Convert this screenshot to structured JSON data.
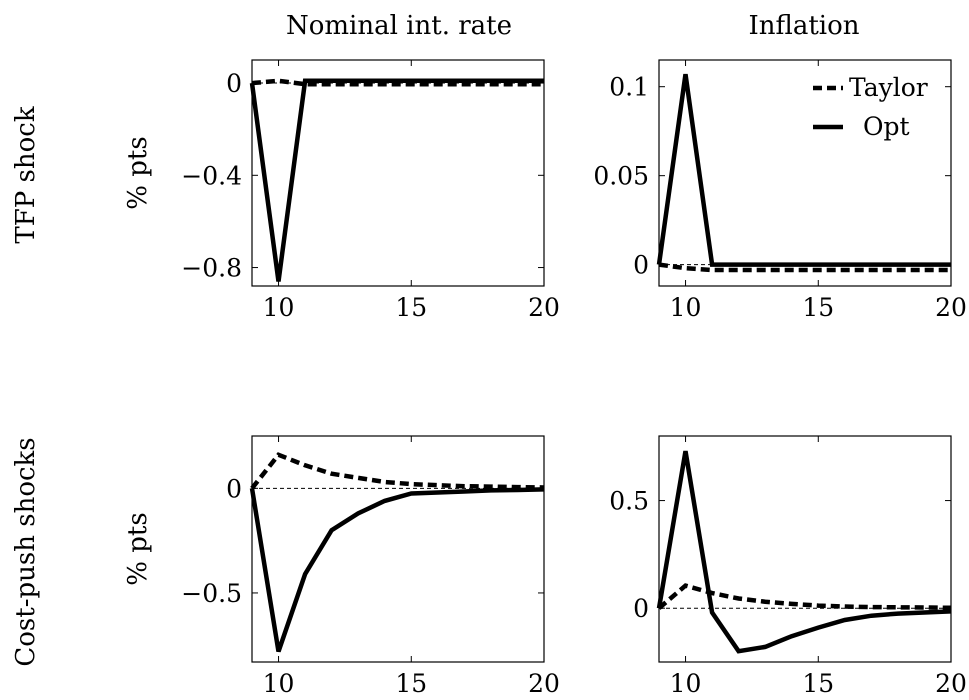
{
  "columns": [
    "Nominal int. rate",
    "Inflation"
  ],
  "rows": [
    "TFP shock",
    "Cost-push shocks"
  ],
  "legend": [
    {
      "label": "Taylor",
      "style": "dashed"
    },
    {
      "label": "Opt",
      "style": "solid"
    }
  ],
  "chart_data": [
    {
      "type": "line",
      "title": "Nominal int. rate",
      "row": "TFP shock",
      "ylabel": "% pts",
      "xlim": [
        9,
        20
      ],
      "ylim": [
        -0.88,
        0.1
      ],
      "xticks": [
        10,
        15,
        20
      ],
      "xtick_labels": [
        "10",
        "15",
        "20"
      ],
      "yticks": [
        0,
        -0.4,
        -0.8
      ],
      "ytick_labels": [
        "0",
        "−0.4",
        "−0.8"
      ],
      "zero_line": true,
      "legend": false,
      "series": [
        {
          "name": "Taylor",
          "style": "dashed",
          "x": [
            9,
            10,
            11,
            12,
            13,
            14,
            15,
            16,
            17,
            18,
            19,
            20
          ],
          "y": [
            0,
            0.01,
            -0.005,
            -0.005,
            -0.005,
            -0.005,
            -0.005,
            -0.005,
            -0.005,
            -0.005,
            -0.005,
            -0.005
          ]
        },
        {
          "name": "Opt",
          "style": "solid",
          "x": [
            9,
            10,
            11,
            12,
            13,
            14,
            15,
            16,
            17,
            18,
            19,
            20
          ],
          "y": [
            0,
            -0.86,
            0.01,
            0.01,
            0.01,
            0.01,
            0.01,
            0.01,
            0.01,
            0.01,
            0.01,
            0.01
          ]
        }
      ]
    },
    {
      "type": "line",
      "title": "Inflation",
      "row": "TFP shock",
      "ylabel": "",
      "xlim": [
        9,
        20
      ],
      "ylim": [
        -0.012,
        0.115
      ],
      "xticks": [
        10,
        15,
        20
      ],
      "xtick_labels": [
        "10",
        "15",
        "20"
      ],
      "yticks": [
        0,
        0.05,
        0.1
      ],
      "ytick_labels": [
        "0",
        "0.05",
        "0.1"
      ],
      "zero_line": true,
      "legend": true,
      "legend_position": "top-right",
      "series": [
        {
          "name": "Taylor",
          "style": "dashed",
          "x": [
            9,
            10,
            11,
            12,
            13,
            14,
            15,
            16,
            17,
            18,
            19,
            20
          ],
          "y": [
            0,
            -0.002,
            -0.003,
            -0.003,
            -0.003,
            -0.003,
            -0.003,
            -0.003,
            -0.003,
            -0.003,
            -0.003,
            -0.003
          ]
        },
        {
          "name": "Opt",
          "style": "solid",
          "x": [
            9,
            10,
            11,
            12,
            13,
            14,
            15,
            16,
            17,
            18,
            19,
            20
          ],
          "y": [
            0,
            0.107,
            0,
            0,
            0,
            0,
            0,
            0,
            0,
            0,
            0,
            0
          ]
        }
      ]
    },
    {
      "type": "line",
      "title": "Nominal int. rate",
      "row": "Cost-push shocks",
      "ylabel": "% pts",
      "xlim": [
        9,
        20
      ],
      "ylim": [
        -0.83,
        0.25
      ],
      "xticks": [
        10,
        15,
        20
      ],
      "xtick_labels": [
        "10",
        "15",
        "20"
      ],
      "yticks": [
        0,
        -0.5
      ],
      "ytick_labels": [
        "0",
        "−0.5"
      ],
      "zero_line": true,
      "legend": false,
      "series": [
        {
          "name": "Taylor",
          "style": "dashed",
          "x": [
            9,
            10,
            11,
            12,
            13,
            14,
            15,
            16,
            17,
            18,
            19,
            20
          ],
          "y": [
            0,
            0.16,
            0.11,
            0.07,
            0.05,
            0.03,
            0.02,
            0.015,
            0.01,
            0.008,
            0.006,
            0.004
          ]
        },
        {
          "name": "Opt",
          "style": "solid",
          "x": [
            9,
            10,
            11,
            12,
            13,
            14,
            15,
            16,
            17,
            18,
            19,
            20
          ],
          "y": [
            0,
            -0.78,
            -0.41,
            -0.2,
            -0.12,
            -0.06,
            -0.025,
            -0.02,
            -0.015,
            -0.01,
            -0.008,
            -0.005
          ]
        }
      ]
    },
    {
      "type": "line",
      "title": "Inflation",
      "row": "Cost-push shocks",
      "ylabel": "",
      "xlim": [
        9,
        20
      ],
      "ylim": [
        -0.25,
        0.8
      ],
      "xticks": [
        10,
        15,
        20
      ],
      "xtick_labels": [
        "10",
        "15",
        "20"
      ],
      "yticks": [
        0,
        0.5
      ],
      "ytick_labels": [
        "0",
        "0.5"
      ],
      "zero_line": true,
      "legend": false,
      "series": [
        {
          "name": "Taylor",
          "style": "dashed",
          "x": [
            9,
            10,
            11,
            12,
            13,
            14,
            15,
            16,
            17,
            18,
            19,
            20
          ],
          "y": [
            0,
            0.105,
            0.07,
            0.045,
            0.03,
            0.02,
            0.012,
            0.008,
            0.005,
            0.004,
            0.003,
            0.002
          ]
        },
        {
          "name": "Opt",
          "style": "solid",
          "x": [
            9,
            10,
            11,
            12,
            13,
            14,
            15,
            16,
            17,
            18,
            19,
            20
          ],
          "y": [
            0,
            0.73,
            -0.02,
            -0.2,
            -0.18,
            -0.13,
            -0.09,
            -0.055,
            -0.035,
            -0.025,
            -0.02,
            -0.015
          ]
        }
      ]
    }
  ]
}
